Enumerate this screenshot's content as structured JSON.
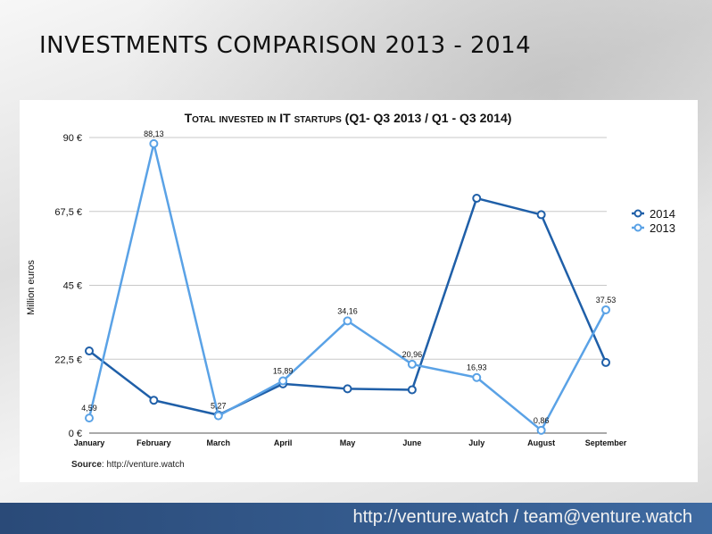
{
  "slide": {
    "title": "INVESTMENTS COMPARISON 2013 - 2014",
    "footer": "http://venture.watch / team@venture.watch"
  },
  "source": {
    "label": "Source",
    "text": ": http://venture.watch"
  },
  "chart_data": {
    "type": "line",
    "title": "Total invested in IT startups (Q1- Q3 2013 / Q1 - Q3 2014)",
    "ylabel": "Million euros",
    "xlabel": "",
    "ylim": [
      0,
      90
    ],
    "yticks": [
      0,
      22.5,
      45,
      67.5,
      90
    ],
    "ytick_labels": [
      "0 €",
      "22,5 €",
      "45 €",
      "67,5 €",
      "90 €"
    ],
    "categories": [
      "January",
      "February",
      "March",
      "April",
      "May",
      "June",
      "July",
      "August",
      "September"
    ],
    "grid": true,
    "legend": "right",
    "series": [
      {
        "name": "2014",
        "color": "#1f5fa8",
        "values": [
          25,
          10,
          5.5,
          15,
          13.5,
          13.2,
          71.5,
          66.5,
          21.5
        ],
        "labels": [
          "",
          "",
          "",
          "",
          "",
          "",
          "",
          "",
          ""
        ]
      },
      {
        "name": "2013",
        "color": "#5aa2e6",
        "values": [
          4.59,
          88.13,
          5.27,
          15.89,
          34.16,
          20.96,
          16.93,
          0.86,
          37.53
        ],
        "labels": [
          "4,59",
          "88,13",
          "5,27",
          "15,89",
          "34,16",
          "20,96",
          "16,93",
          "0,86",
          "37,53"
        ]
      }
    ]
  }
}
